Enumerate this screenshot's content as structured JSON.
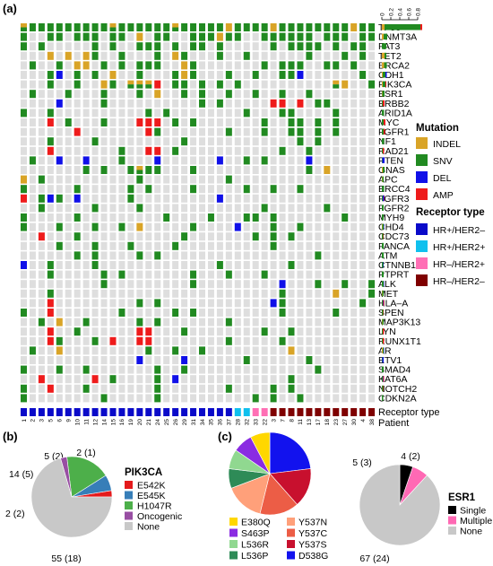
{
  "panels": {
    "a": "(a)",
    "b": "(b)",
    "c": "(c)"
  },
  "colors": {
    "none": "#dedede",
    "INDEL": "#d9a427",
    "SNV": "#218a21",
    "DEL": "#1010e8",
    "AMP": "#ee1b1b",
    "HR+/HER2-": "#0a0ac9",
    "HR+/HER2+": "#10c0ee",
    "HR-/HER2+": "#ff6fb5",
    "HR-/HER2-": "#7f0000"
  },
  "chart_data": [
    {
      "type": "heatmap",
      "genes": [
        "TP53",
        "DNMT3A",
        "FAT3",
        "TET2",
        "BRCA2",
        "CDH1",
        "PIK3CA",
        "ESR1",
        "ERBB2",
        "ARID1A",
        "MYC",
        "FGFR1",
        "NF1",
        "RAD21",
        "PTEN",
        "GNAS",
        "APC",
        "ERCC4",
        "FGFR3",
        "FGFR2",
        "MYH9",
        "CHD4",
        "CDC73",
        "FANCA",
        "ATM",
        "CTNNB1",
        "PTPRT",
        "ALK",
        "MET",
        "HLA–A",
        "SPEN",
        "MAP3K13",
        "LYN",
        "RUNX1T1",
        "AR",
        "ETV1",
        "SMAD4",
        "KAT6A",
        "NOTCH2",
        "CDKN2A"
      ],
      "patients": [
        "1",
        "2",
        "3",
        "5",
        "6",
        "9",
        "10",
        "11",
        "12",
        "14",
        "15",
        "16",
        "19",
        "20",
        "21",
        "24",
        "25",
        "26",
        "29",
        "31",
        "34",
        "35",
        "36",
        "37",
        "28",
        "32",
        "33",
        "22",
        "3",
        "7",
        "8",
        "11",
        "13",
        "17",
        "18",
        "23",
        "27",
        "30",
        "4",
        "38"
      ],
      "receptor_type": [
        "HR+/HER2-",
        "HR+/HER2-",
        "HR+/HER2-",
        "HR+/HER2-",
        "HR+/HER2-",
        "HR+/HER2-",
        "HR+/HER2-",
        "HR+/HER2-",
        "HR+/HER2-",
        "HR+/HER2-",
        "HR+/HER2-",
        "HR+/HER2-",
        "HR+/HER2-",
        "HR+/HER2-",
        "HR+/HER2-",
        "HR+/HER2-",
        "HR+/HER2-",
        "HR+/HER2-",
        "HR+/HER2-",
        "HR+/HER2-",
        "HR+/HER2-",
        "HR+/HER2-",
        "HR+/HER2-",
        "HR+/HER2-",
        "HR+/HER2+",
        "HR+/HER2+",
        "HR-/HER2+",
        "HR-/HER2+",
        "HR-/HER2-",
        "HR-/HER2-",
        "HR-/HER2-",
        "HR-/HER2-",
        "HR-/HER2-",
        "HR-/HER2-",
        "HR-/HER2-",
        "HR-/HER2-",
        "HR-/HER2-",
        "HR-/HER2-",
        "HR-/HER2-",
        "HR-/HER2-"
      ],
      "mutation_rows": [
        "MSSSSSSSSSMSSSSSSMSSSSSISSSSISSSSSSSSISS",
        "S..SS.SSS.SS.I.SS..SSSISS..SSSSSS.SSS.SS",
        "S.S.....S.S..SSS.S.SS.S.....S.SSSS.S.SS.",
        "...I.I.IS..S...S.IS...S..S......S...S.S.",
        ".S..S.II.S.S.SSS..IS.......S.SSS..SS.S..",
        "...SD.S.S.I..S...SIS...S..S..SSD......S.",
        "...S..S..IS.MMMA.SS.S.S.S..........MI..S",
        ".S...S...S...S.I..S.S..S..S..S..S.......",
        "....D....S..........S.S.....AA.A.SS.....",
        "S..S..........S.S........S...SS....S....",
        "...A.S...S...AAA.S.S.......S..SS.S.S....",
        "......A.......AS.......S...S..SS.S.S....",
        "...S....S.........S............S.S......",
        "...A.......S..AA.S...........S..S.......",
        ".S..D..D...S...D......D..S.S....D.......",
        ".......S.S..SMSS...S............S.I.....",
        "I.S..........S.........S................",
        "S.....S.....S.S....S.....S..S..S........",
        "A.SDS.D.....S.........D..................",
        "..S.....S....S.............S......S.....",
        "S.....S.........S....S...SS.S.......S...",
        "S...S...S..S.I.....S....D...S..S........",
        "..A...S...........S.......S.S.S.........",
        "....S...S...S....S..........S...........",
        "......S.S....S.S.................S......",
        "D..S....S.............S.......S.........",
        "...S.....S.S.......S...S...S............",
        ".........S.........S.........D...S..S..S",
        "...S.........................S.....I...S",
        "...A.........S.S............DS........S.",
        "S..A.......S.....S.S.........S.....S....",
        "..S.I..S.....S.S.......S................",
        "...A..S......AA...S........S..S........",
        "...AS...S.A..AA........S.....S........",
        ".S..I.........S..S..S.........I.........",
        ".............D....D......S......S.......",
        "S...S..S.......S..S..............S......",
        "..A.....A.S....S.D............S..........",
        "S..A...S.......S.......S....S.S.......",
        "S........S.....S..........S.S..S........"
      ],
      "frequency_axis": {
        "ticks": [
          0,
          0.2,
          0.4,
          0.6,
          0.8
        ],
        "range": [
          0,
          0.8
        ]
      },
      "gene_frequency": [
        {
          "INDEL": 0.06,
          "SNV": 0.8,
          "DEL": 0,
          "AMP": 0.04
        },
        {
          "INDEL": 0.04,
          "SNV": 0.08,
          "DEL": 0,
          "AMP": 0
        },
        {
          "INDEL": 0,
          "SNV": 0.1,
          "DEL": 0,
          "AMP": 0
        },
        {
          "INDEL": 0.06,
          "SNV": 0.04,
          "DEL": 0,
          "AMP": 0
        },
        {
          "INDEL": 0.05,
          "SNV": 0.06,
          "DEL": 0,
          "AMP": 0
        },
        {
          "INDEL": 0.02,
          "SNV": 0.06,
          "DEL": 0.03,
          "AMP": 0
        },
        {
          "INDEL": 0.02,
          "SNV": 0.06,
          "DEL": 0,
          "AMP": 0.02
        },
        {
          "INDEL": 0.01,
          "SNV": 0.05,
          "DEL": 0,
          "AMP": 0
        },
        {
          "INDEL": 0,
          "SNV": 0.02,
          "DEL": 0,
          "AMP": 0.04
        },
        {
          "INDEL": 0,
          "SNV": 0.05,
          "DEL": 0,
          "AMP": 0
        },
        {
          "INDEL": 0,
          "SNV": 0.04,
          "DEL": 0,
          "AMP": 0.04
        },
        {
          "INDEL": 0,
          "SNV": 0.04,
          "DEL": 0,
          "AMP": 0.03
        },
        {
          "INDEL": 0,
          "SNV": 0.05,
          "DEL": 0,
          "AMP": 0
        },
        {
          "INDEL": 0,
          "SNV": 0.02,
          "DEL": 0,
          "AMP": 0.03
        },
        {
          "INDEL": 0,
          "SNV": 0.01,
          "DEL": 0.05,
          "AMP": 0
        },
        {
          "INDEL": 0.02,
          "SNV": 0.04,
          "DEL": 0,
          "AMP": 0
        },
        {
          "INDEL": 0.01,
          "SNV": 0.03,
          "DEL": 0,
          "AMP": 0
        },
        {
          "INDEL": 0,
          "SNV": 0.05,
          "DEL": 0,
          "AMP": 0
        },
        {
          "INDEL": 0,
          "SNV": 0.02,
          "DEL": 0.03,
          "AMP": 0.01
        },
        {
          "INDEL": 0,
          "SNV": 0.04,
          "DEL": 0,
          "AMP": 0
        },
        {
          "INDEL": 0,
          "SNV": 0.04,
          "DEL": 0,
          "AMP": 0
        },
        {
          "INDEL": 0.01,
          "SNV": 0.03,
          "DEL": 0.01,
          "AMP": 0
        },
        {
          "INDEL": 0,
          "SNV": 0.03,
          "DEL": 0,
          "AMP": 0.01
        },
        {
          "INDEL": 0,
          "SNV": 0.04,
          "DEL": 0,
          "AMP": 0
        },
        {
          "INDEL": 0,
          "SNV": 0.04,
          "DEL": 0,
          "AMP": 0
        },
        {
          "INDEL": 0,
          "SNV": 0.03,
          "DEL": 0.01,
          "AMP": 0
        },
        {
          "INDEL": 0,
          "SNV": 0.04,
          "DEL": 0,
          "AMP": 0
        },
        {
          "INDEL": 0,
          "SNV": 0.04,
          "DEL": 0.01,
          "AMP": 0
        },
        {
          "INDEL": 0.01,
          "SNV": 0.03,
          "DEL": 0,
          "AMP": 0
        },
        {
          "INDEL": 0,
          "SNV": 0.02,
          "DEL": 0.01,
          "AMP": 0.02
        },
        {
          "INDEL": 0,
          "SNV": 0.03,
          "DEL": 0,
          "AMP": 0.01
        },
        {
          "INDEL": 0.01,
          "SNV": 0.03,
          "DEL": 0,
          "AMP": 0
        },
        {
          "INDEL": 0,
          "SNV": 0.02,
          "DEL": 0,
          "AMP": 0.03
        },
        {
          "INDEL": 0,
          "SNV": 0.02,
          "DEL": 0,
          "AMP": 0.03
        },
        {
          "INDEL": 0.02,
          "SNV": 0.02,
          "DEL": 0.01,
          "AMP": 0
        },
        {
          "INDEL": 0,
          "SNV": 0.01,
          "DEL": 0.03,
          "AMP": 0
        },
        {
          "INDEL": 0,
          "SNV": 0.04,
          "DEL": 0,
          "AMP": 0
        },
        {
          "INDEL": 0,
          "SNV": 0.02,
          "DEL": 0.01,
          "AMP": 0.02
        },
        {
          "INDEL": 0,
          "SNV": 0.03,
          "DEL": 0,
          "AMP": 0.01
        },
        {
          "INDEL": 0,
          "SNV": 0.03,
          "DEL": 0,
          "AMP": 0
        }
      ],
      "row_labels": {
        "receptor": "Receptor type",
        "patient": "Patient"
      },
      "legends": {
        "mutation": {
          "title": "Mutation",
          "items": [
            "INDEL",
            "SNV",
            "DEL",
            "AMP"
          ]
        },
        "receptor": {
          "title": "Receptor type",
          "items": [
            "HR+/HER2–",
            "HR+/HER2+",
            "HR–/HER2+",
            "HR–/HER2–"
          ]
        }
      }
    },
    {
      "type": "pie",
      "title": "PIK3CA",
      "slices": [
        {
          "name": "E542K",
          "value": 2,
          "label": "2 (1)",
          "color": "#e41a1c"
        },
        {
          "name": "E545K",
          "value": 5,
          "label": "5 (2)",
          "color": "#377eb8"
        },
        {
          "name": "H1047R",
          "value": 14,
          "label": "14 (5)",
          "color": "#4daf4a"
        },
        {
          "name": "Oncogenic",
          "value": 2,
          "label": "2 (2)",
          "color": "#984ea3"
        },
        {
          "name": "None",
          "value": 55,
          "label": "55 (18)",
          "color": "#c8c8c8"
        }
      ]
    },
    {
      "type": "pie",
      "title": "",
      "slices": [
        {
          "name": "E380Q",
          "value": 1,
          "color": "#ffd700"
        },
        {
          "name": "S463P",
          "value": 1,
          "color": "#8a2be2"
        },
        {
          "name": "L536R",
          "value": 1,
          "color": "#90d890"
        },
        {
          "name": "L536P",
          "value": 1,
          "color": "#2e8b57"
        },
        {
          "name": "Y537N",
          "value": 2,
          "color": "#ffa07a"
        },
        {
          "name": "Y537C",
          "value": 2,
          "color": "#ec5d46"
        },
        {
          "name": "Y537S",
          "value": 2,
          "color": "#c8102e"
        },
        {
          "name": "D538G",
          "value": 3,
          "color": "#1212ee"
        }
      ],
      "legend_order": [
        "E380Q",
        "Y537N",
        "S463P",
        "Y537C",
        "L536R",
        "Y537S",
        "L536P",
        "D538G"
      ]
    },
    {
      "type": "pie",
      "title": "ESR1",
      "slices": [
        {
          "name": "Single",
          "value": 4,
          "label": "4 (2)",
          "color": "#000000"
        },
        {
          "name": "Multiple",
          "value": 5,
          "label": "5 (3)",
          "color": "#ff69b4"
        },
        {
          "name": "None",
          "value": 67,
          "label": "67 (24)",
          "color": "#c8c8c8"
        }
      ]
    }
  ]
}
